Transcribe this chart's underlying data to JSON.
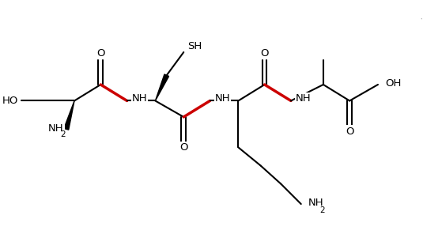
{
  "background_color": "#ffffff",
  "border_color": "#b8b8b8",
  "bond_color": "#000000",
  "red_bond_color": "#cc0000",
  "text_color": "#000000",
  "figsize": [
    5.35,
    3.01
  ],
  "dpi": 100,
  "xlim": [
    -1.6,
    8.6
  ],
  "ylim": [
    -2.8,
    2.2
  ],
  "lw": 1.5,
  "lw_red": 2.5,
  "lw_wedge": 3.8,
  "fs": 9.5,
  "fs2": 7.5
}
